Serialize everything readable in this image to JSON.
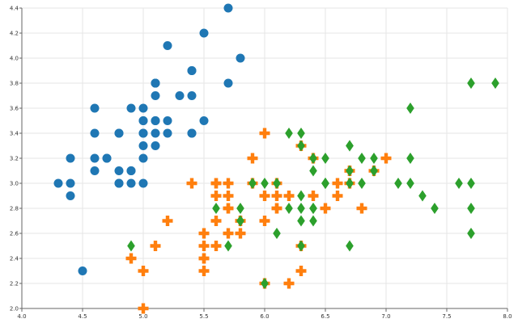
{
  "chart_data": {
    "type": "scatter",
    "title": "",
    "xlabel": "",
    "ylabel": "",
    "xlim": [
      4.0,
      8.0
    ],
    "ylim": [
      2.0,
      4.4
    ],
    "x_ticks": [
      "4.0",
      "4.5",
      "5.0",
      "5.5",
      "6.0",
      "6.5",
      "7.0",
      "7.5",
      "8.0"
    ],
    "y_ticks": [
      "2.0",
      "2.2",
      "2.4",
      "2.6",
      "2.8",
      "3.0",
      "3.2",
      "3.4",
      "3.6",
      "3.8",
      "4.0",
      "4.2",
      "4.4"
    ],
    "grid": true,
    "legend": "none",
    "series": [
      {
        "marker": "circle",
        "color": "#1f77b4",
        "points": [
          [
            5.1,
            3.5
          ],
          [
            4.9,
            3.0
          ],
          [
            4.7,
            3.2
          ],
          [
            4.6,
            3.1
          ],
          [
            5.0,
            3.6
          ],
          [
            5.4,
            3.9
          ],
          [
            4.6,
            3.4
          ],
          [
            5.0,
            3.4
          ],
          [
            4.4,
            2.9
          ],
          [
            4.9,
            3.1
          ],
          [
            5.4,
            3.7
          ],
          [
            4.8,
            3.4
          ],
          [
            4.8,
            3.0
          ],
          [
            4.3,
            3.0
          ],
          [
            5.8,
            4.0
          ],
          [
            5.7,
            4.4
          ],
          [
            5.4,
            3.9
          ],
          [
            5.1,
            3.5
          ],
          [
            5.7,
            3.8
          ],
          [
            5.1,
            3.8
          ],
          [
            5.4,
            3.4
          ],
          [
            5.1,
            3.7
          ],
          [
            4.6,
            3.6
          ],
          [
            5.1,
            3.3
          ],
          [
            4.8,
            3.4
          ],
          [
            5.0,
            3.0
          ],
          [
            5.0,
            3.4
          ],
          [
            5.2,
            3.5
          ],
          [
            5.2,
            3.4
          ],
          [
            4.7,
            3.2
          ],
          [
            4.8,
            3.1
          ],
          [
            5.4,
            3.4
          ],
          [
            5.2,
            4.1
          ],
          [
            5.5,
            4.2
          ],
          [
            4.9,
            3.1
          ],
          [
            5.0,
            3.2
          ],
          [
            5.5,
            3.5
          ],
          [
            4.9,
            3.6
          ],
          [
            4.4,
            3.0
          ],
          [
            5.1,
            3.4
          ],
          [
            5.0,
            3.5
          ],
          [
            4.5,
            2.3
          ],
          [
            4.4,
            3.2
          ],
          [
            5.0,
            3.5
          ],
          [
            5.1,
            3.8
          ],
          [
            4.8,
            3.0
          ],
          [
            5.1,
            3.8
          ],
          [
            4.6,
            3.2
          ],
          [
            5.3,
            3.7
          ],
          [
            5.0,
            3.3
          ]
        ]
      },
      {
        "marker": "plus",
        "color": "#ff7f0e",
        "points": [
          [
            7.0,
            3.2
          ],
          [
            6.4,
            3.2
          ],
          [
            6.9,
            3.1
          ],
          [
            5.5,
            2.3
          ],
          [
            6.5,
            2.8
          ],
          [
            5.7,
            2.8
          ],
          [
            6.3,
            3.3
          ],
          [
            4.9,
            2.4
          ],
          [
            6.6,
            2.9
          ],
          [
            5.2,
            2.7
          ],
          [
            5.0,
            2.0
          ],
          [
            5.9,
            3.0
          ],
          [
            6.0,
            2.2
          ],
          [
            6.1,
            2.9
          ],
          [
            5.6,
            2.9
          ],
          [
            6.7,
            3.1
          ],
          [
            5.6,
            3.0
          ],
          [
            5.8,
            2.7
          ],
          [
            6.2,
            2.2
          ],
          [
            5.6,
            2.5
          ],
          [
            5.9,
            3.2
          ],
          [
            6.1,
            2.8
          ],
          [
            6.3,
            2.5
          ],
          [
            6.1,
            2.8
          ],
          [
            6.4,
            2.9
          ],
          [
            6.6,
            3.0
          ],
          [
            6.8,
            2.8
          ],
          [
            6.7,
            3.0
          ],
          [
            6.0,
            2.9
          ],
          [
            5.7,
            2.6
          ],
          [
            5.5,
            2.4
          ],
          [
            5.5,
            2.4
          ],
          [
            5.8,
            2.7
          ],
          [
            6.0,
            2.7
          ],
          [
            5.4,
            3.0
          ],
          [
            6.0,
            3.4
          ],
          [
            6.7,
            3.1
          ],
          [
            6.3,
            2.3
          ],
          [
            5.6,
            3.0
          ],
          [
            5.5,
            2.5
          ],
          [
            5.5,
            2.6
          ],
          [
            6.1,
            3.0
          ],
          [
            5.8,
            2.6
          ],
          [
            5.0,
            2.3
          ],
          [
            5.6,
            2.7
          ],
          [
            5.7,
            3.0
          ],
          [
            5.7,
            2.9
          ],
          [
            6.2,
            2.9
          ],
          [
            5.1,
            2.5
          ],
          [
            5.7,
            2.8
          ]
        ]
      },
      {
        "marker": "diamond",
        "color": "#2ca02c",
        "points": [
          [
            6.3,
            3.3
          ],
          [
            5.8,
            2.7
          ],
          [
            7.1,
            3.0
          ],
          [
            6.3,
            2.9
          ],
          [
            6.5,
            3.0
          ],
          [
            7.6,
            3.0
          ],
          [
            4.9,
            2.5
          ],
          [
            7.3,
            2.9
          ],
          [
            6.7,
            2.5
          ],
          [
            7.2,
            3.6
          ],
          [
            6.5,
            3.2
          ],
          [
            6.4,
            2.7
          ],
          [
            6.8,
            3.0
          ],
          [
            5.7,
            2.5
          ],
          [
            5.8,
            2.8
          ],
          [
            6.4,
            3.2
          ],
          [
            6.5,
            3.0
          ],
          [
            7.7,
            3.8
          ],
          [
            7.7,
            2.6
          ],
          [
            6.0,
            2.2
          ],
          [
            6.9,
            3.2
          ],
          [
            5.6,
            2.8
          ],
          [
            7.7,
            2.8
          ],
          [
            6.3,
            2.7
          ],
          [
            6.7,
            3.3
          ],
          [
            7.2,
            3.2
          ],
          [
            6.2,
            2.8
          ],
          [
            6.1,
            3.0
          ],
          [
            6.4,
            2.8
          ],
          [
            7.2,
            3.0
          ],
          [
            7.4,
            2.8
          ],
          [
            7.9,
            3.8
          ],
          [
            6.4,
            2.8
          ],
          [
            6.3,
            2.8
          ],
          [
            6.1,
            2.6
          ],
          [
            7.7,
            3.0
          ],
          [
            6.3,
            3.4
          ],
          [
            6.4,
            3.1
          ],
          [
            6.0,
            3.0
          ],
          [
            6.9,
            3.1
          ],
          [
            6.7,
            3.1
          ],
          [
            6.9,
            3.1
          ],
          [
            5.8,
            2.7
          ],
          [
            6.8,
            3.2
          ],
          [
            6.7,
            3.3
          ],
          [
            6.7,
            3.0
          ],
          [
            6.3,
            2.5
          ],
          [
            6.5,
            3.0
          ],
          [
            6.2,
            3.4
          ],
          [
            5.9,
            3.0
          ]
        ]
      }
    ]
  }
}
